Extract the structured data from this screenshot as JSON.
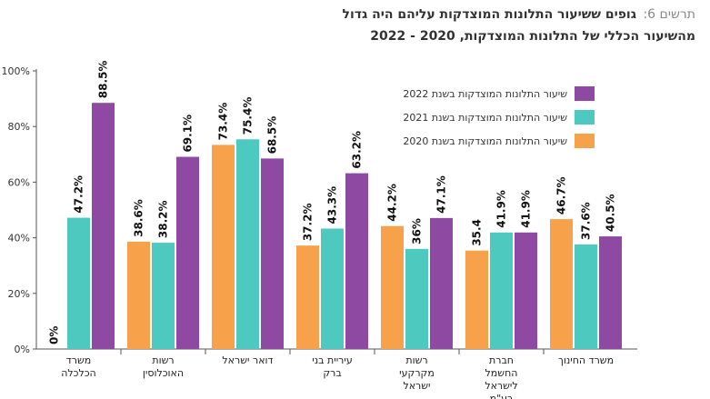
{
  "chart_data": {
    "type": "bar",
    "title_label": "תרשים 6:",
    "title": "גופים ששיעור התלונות המוצדקות עליהם היה גדול",
    "subtitle": "מהשיעור הכללי של התלונות המוצדקות, 2020 - 2022",
    "categories": [
      "משרד הכלכלה",
      "רשות האוכלוסין",
      "דואר ישראל",
      "עיריית בני ברק",
      "רשות מקרקעי ישראל",
      "חברת החשמל לישראל בע\"מ",
      "משרד החינוך"
    ],
    "series": [
      {
        "name": "שיעור התלונות המוצדקות בשנת 2020",
        "color": "#f7a24a",
        "values": [
          0,
          38.6,
          73.4,
          37.2,
          44.2,
          35.4,
          46.7
        ],
        "value_labels": [
          "0%",
          "38.6%",
          "73.4%",
          "37.2%",
          "44.2%",
          "35.4",
          "46.7%"
        ]
      },
      {
        "name": "שיעור התלונות המוצדקות בשנת 2021",
        "color": "#4ec9bf",
        "values": [
          47.2,
          38.2,
          75.4,
          43.3,
          36,
          41.9,
          37.6
        ],
        "value_labels": [
          "47.2%",
          "38.2%",
          "75.4%",
          "43.3%",
          "36%",
          "41.9%",
          "37.6%"
        ]
      },
      {
        "name": "שיעור התלונות המוצדקות בשנת 2022",
        "color": "#8e4aa3",
        "values": [
          88.5,
          69.1,
          68.5,
          63.2,
          47.1,
          41.9,
          40.5
        ],
        "value_labels": [
          "88.5%",
          "69.1%",
          "68.5%",
          "63.2%",
          "47.1%",
          "41.9%",
          "40.5%"
        ]
      }
    ],
    "ylim": [
      0,
      100
    ],
    "yticks": [
      {
        "value": 0,
        "label": "0%"
      },
      {
        "value": 20,
        "label": "20%"
      },
      {
        "value": 40,
        "label": "40%"
      },
      {
        "value": 60,
        "label": "60%"
      },
      {
        "value": 80,
        "label": "80%"
      },
      {
        "value": 100,
        "label": "100%"
      }
    ],
    "legend": "upper right"
  }
}
